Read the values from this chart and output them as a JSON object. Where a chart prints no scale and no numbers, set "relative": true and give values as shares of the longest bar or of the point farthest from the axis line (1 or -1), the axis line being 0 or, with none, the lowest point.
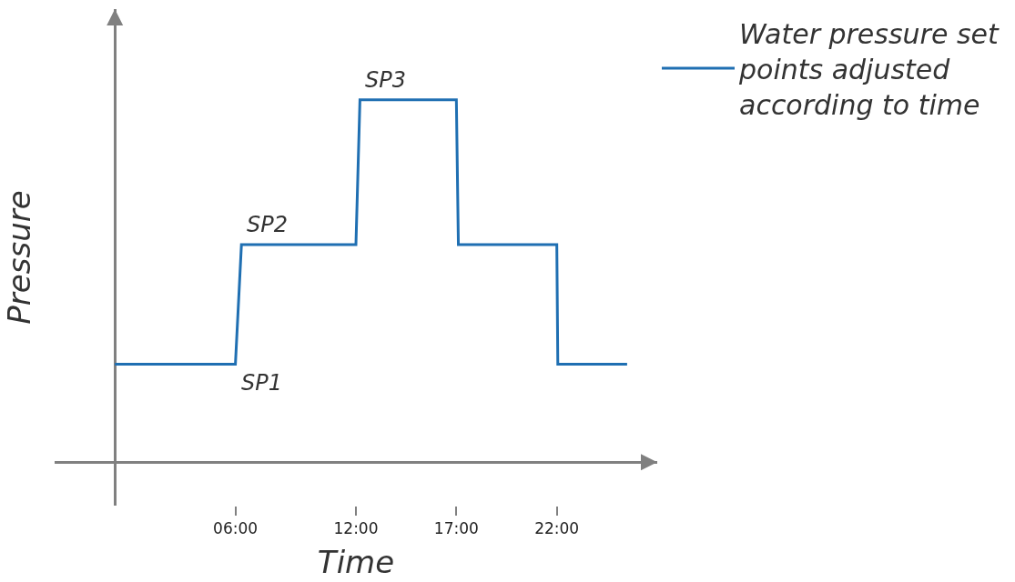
{
  "chart_data": {
    "type": "line",
    "relative": true,
    "xlabel": "Time",
    "ylabel": "Pressure",
    "x": [
      0,
      6,
      6.3,
      12,
      12.2,
      17,
      17.1,
      22,
      22.05,
      25.5
    ],
    "series": [
      {
        "name": "Water pressure set points adjusted according to time",
        "color": "#1f6fb2",
        "values": [
          0.27,
          0.27,
          0.6,
          0.6,
          1,
          1,
          0.6,
          0.6,
          0.27,
          0.27
        ]
      }
    ],
    "xlim": [
      -3,
      27
    ],
    "xticks": [
      {
        "value": 6,
        "label": "06:00"
      },
      {
        "value": 12,
        "label": "12:00"
      },
      {
        "value": 17,
        "label": "17:00"
      },
      {
        "value": 22,
        "label": "22:00"
      }
    ],
    "annotations": [
      {
        "text": "SP1",
        "x": 6,
        "y": 0.27
      },
      {
        "text": "SP2",
        "x": 6.3,
        "y": 0.6
      },
      {
        "text": "SP3",
        "x": 12.2,
        "y": 1
      }
    ],
    "legend": "top right",
    "marker": "none",
    "line_style": "solid"
  }
}
